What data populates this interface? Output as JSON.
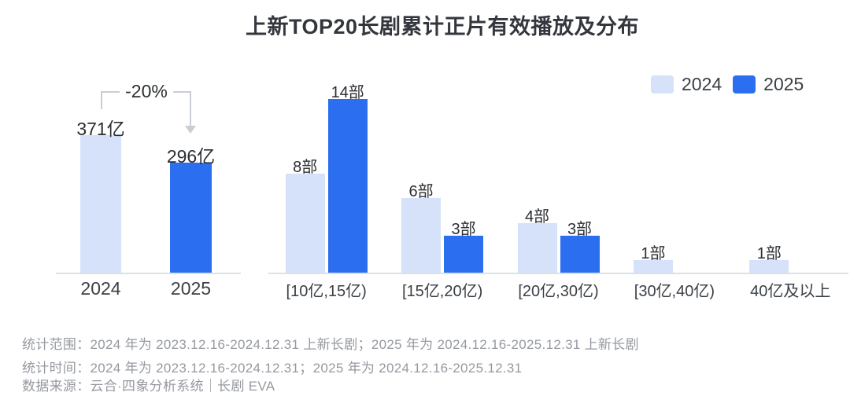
{
  "title": "上新TOP20长剧累计正片有效播放及分布",
  "legend": {
    "items": [
      {
        "label": "2024",
        "color": "#d5e2f9"
      },
      {
        "label": "2025",
        "color": "#2b6ff0"
      }
    ]
  },
  "chart_data": [
    {
      "type": "bar",
      "title": "上新TOP20长剧累计正片有效播放",
      "categories": [
        "2024",
        "2025"
      ],
      "values": [
        371,
        296
      ],
      "value_labels": [
        "371亿",
        "296亿"
      ],
      "unit": "亿",
      "annotation": "-20%",
      "ylim": [
        0,
        400
      ],
      "grid": false
    },
    {
      "type": "bar",
      "title": "上新TOP20长剧分布",
      "categories": [
        "[10亿,15亿)",
        "[15亿,20亿)",
        "[20亿,30亿)",
        "[30亿,40亿)",
        "40亿及以上"
      ],
      "series": [
        {
          "name": "2024",
          "values": [
            8,
            6,
            4,
            1,
            1
          ],
          "value_labels": [
            "8部",
            "6部",
            "4部",
            "1部",
            "1部"
          ]
        },
        {
          "name": "2025",
          "values": [
            14,
            3,
            3,
            0,
            0
          ],
          "value_labels": [
            "14部",
            "3部",
            "3部",
            "",
            ""
          ]
        }
      ],
      "unit": "部",
      "ylim": [
        0,
        14
      ],
      "grid": false,
      "legend_position": "top-right"
    }
  ],
  "footer": {
    "lines": [
      "统计范围：2024 年为 2023.12.16-2024.12.31 上新长剧；2025 年为 2024.12.16-2025.12.31 上新长剧",
      "统计时间：2024 年为 2023.12.16-2024.12.31；2025 年为 2024.12.16-2025.12.31",
      "数据来源：云合·四象分析系统｜长剧 EVA"
    ]
  },
  "colors": {
    "series_2024": "#d5e2f9",
    "series_2025": "#2b6ff0",
    "axis_line": "#dde0e5",
    "annotation_line": "#c9ced6",
    "title_text": "#33373d",
    "footer_text": "#9599a0"
  }
}
